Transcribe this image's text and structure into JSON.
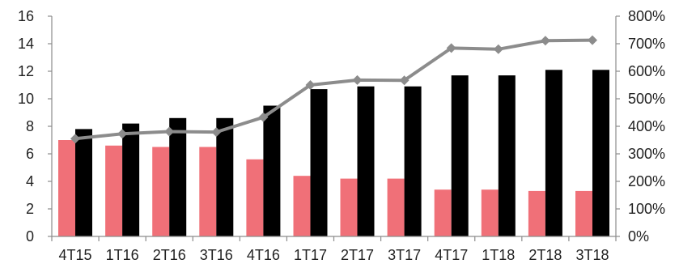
{
  "chart_data": {
    "type": "bar",
    "title": "",
    "categories": [
      "4T15",
      "1T16",
      "2T16",
      "3T16",
      "4T16",
      "1T17",
      "2T17",
      "3T17",
      "4T17",
      "1T18",
      "2T18",
      "3T18"
    ],
    "series": [
      {
        "axis": "left",
        "kind": "bar",
        "color": "#f07078",
        "values": [
          7.0,
          6.6,
          6.5,
          6.5,
          5.6,
          4.4,
          4.2,
          4.2,
          3.4,
          3.4,
          3.3,
          3.3
        ]
      },
      {
        "axis": "left",
        "kind": "bar",
        "color": "#000000",
        "values": [
          7.8,
          8.2,
          8.6,
          8.6,
          9.5,
          10.7,
          10.9,
          10.9,
          11.7,
          11.7,
          12.1,
          12.1
        ]
      },
      {
        "axis": "right",
        "kind": "line",
        "color": "#8c8c8c",
        "values": [
          355,
          373,
          381,
          379,
          433,
          550,
          568,
          567,
          684,
          680,
          711,
          713
        ]
      }
    ],
    "y_left": {
      "min": 0,
      "max": 16,
      "step": 2,
      "tick_labels": [
        "0",
        "2",
        "4",
        "6",
        "8",
        "10",
        "12",
        "14",
        "16"
      ]
    },
    "y_right": {
      "min": 0,
      "max": 800,
      "step": 100,
      "tick_labels": [
        "0%",
        "100%",
        "200%",
        "300%",
        "400%",
        "500%",
        "600%",
        "700%",
        "800%"
      ]
    },
    "xlabel": "",
    "ylabel": "",
    "legend": "none",
    "grid": false
  }
}
